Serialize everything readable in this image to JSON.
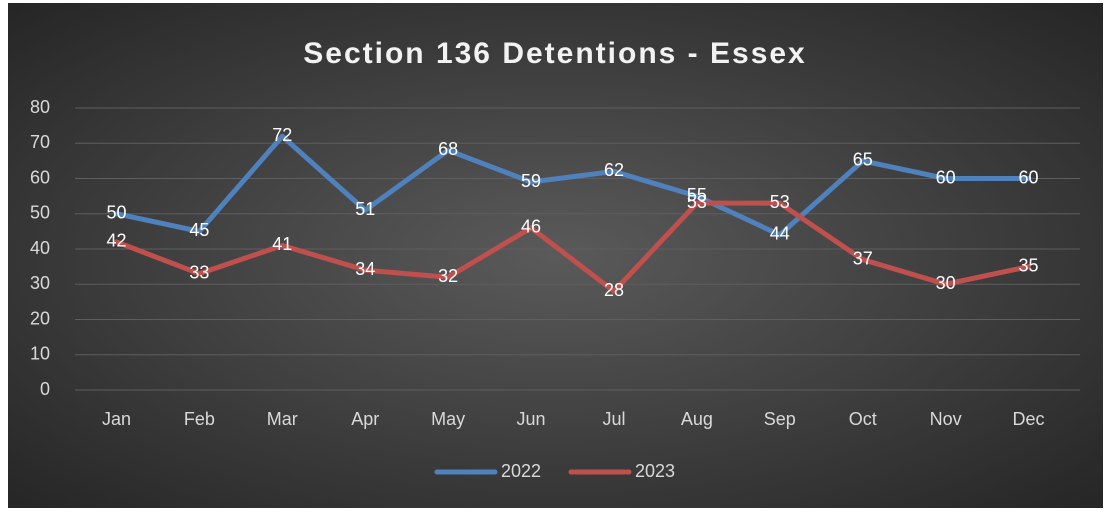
{
  "chart_data": {
    "type": "line",
    "title": "Section 136 Detentions - Essex",
    "categories": [
      "Jan",
      "Feb",
      "Mar",
      "Apr",
      "May",
      "Jun",
      "Jul",
      "Aug",
      "Sep",
      "Oct",
      "Nov",
      "Dec"
    ],
    "series": [
      {
        "name": "2022",
        "color": "#4f81bd",
        "values": [
          50,
          45,
          72,
          51,
          68,
          59,
          62,
          55,
          44,
          65,
          60,
          60
        ]
      },
      {
        "name": "2023",
        "color": "#c0504d",
        "values": [
          42,
          33,
          41,
          34,
          32,
          46,
          28,
          53,
          53,
          37,
          30,
          35
        ]
      }
    ],
    "ylim": [
      0,
      80
    ],
    "yticks": [
      0,
      10,
      20,
      30,
      40,
      50,
      60,
      70,
      80
    ],
    "grid": true,
    "legend": "bottom"
  }
}
